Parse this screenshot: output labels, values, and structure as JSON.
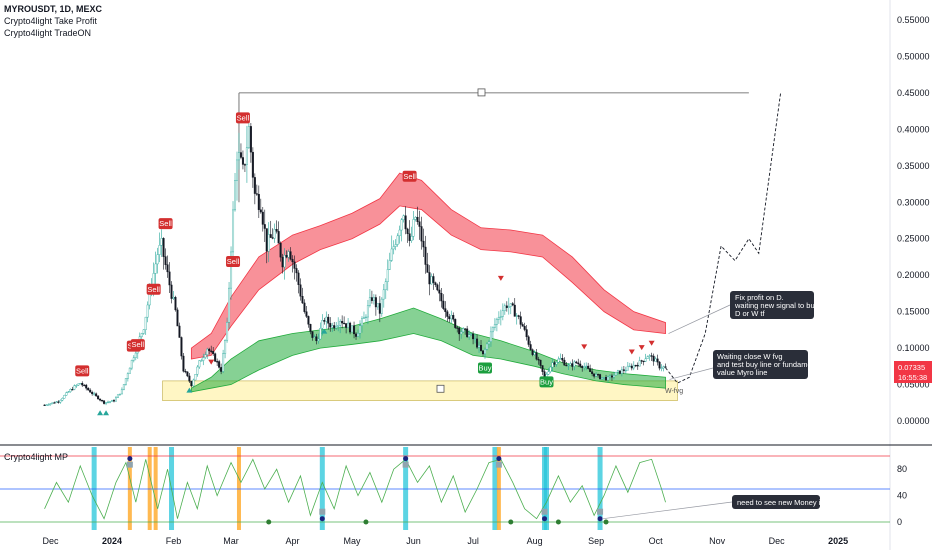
{
  "header": {
    "symbol": "MYROUSDT, 1D, MEXC",
    "indicator1": "Crypto4light Take Profit",
    "indicator2": "Crypto4light TradeON",
    "sub_indicator": "Crypto4light MP"
  },
  "price_badge": {
    "price": "0.07335",
    "timer": "16:55:38",
    "color": "#f23645"
  },
  "notes": [
    {
      "lines": [
        "Fix profit on D.",
        "waiting new signal to buy on",
        "D or W tf"
      ]
    },
    {
      "lines": [
        "Waiting close W fvg",
        "and test buy line or fundamental",
        "value Myro line"
      ]
    },
    {
      "lines": [
        "need to see new Money inflow"
      ]
    }
  ],
  "zone_label": "W-fvg",
  "colors": {
    "up": "#089981",
    "down": "#131722",
    "red_band": "#f23645",
    "green_band": "#22ab3c",
    "fvg": "#fff3b0",
    "osc": "#4caf50"
  },
  "chart_data": {
    "type": "candlestick",
    "title": "MYROUSDT, 1D, MEXC",
    "y_ticks": [
      "0.55000",
      "0.50000",
      "0.45000",
      "0.40000",
      "0.35000",
      "0.30000",
      "0.25000",
      "0.20000",
      "0.15000",
      "0.10000",
      "0.05000",
      "0.00000"
    ],
    "x_ticks": [
      "Dec",
      "2024",
      "Feb",
      "Mar",
      "Apr",
      "May",
      "Jun",
      "Jul",
      "Aug",
      "Sep",
      "Oct",
      "Nov",
      "Dec",
      "2025"
    ],
    "ylim": [
      0,
      0.57
    ],
    "price_path": [
      [
        "2023-11-28",
        0.022
      ],
      [
        "2023-12-05",
        0.027
      ],
      [
        "2023-12-12",
        0.045
      ],
      [
        "2023-12-16",
        0.052
      ],
      [
        "2023-12-22",
        0.038
      ],
      [
        "2023-12-28",
        0.025
      ],
      [
        "2024-01-02",
        0.028
      ],
      [
        "2024-01-06",
        0.042
      ],
      [
        "2024-01-10",
        0.075
      ],
      [
        "2024-01-14",
        0.105
      ],
      [
        "2024-01-17",
        0.13
      ],
      [
        "2024-01-20",
        0.175
      ],
      [
        "2024-01-24",
        0.23
      ],
      [
        "2024-01-26",
        0.24
      ],
      [
        "2024-01-29",
        0.2
      ],
      [
        "2024-02-02",
        0.15
      ],
      [
        "2024-02-06",
        0.07
      ],
      [
        "2024-02-10",
        0.05
      ],
      [
        "2024-02-14",
        0.08
      ],
      [
        "2024-02-18",
        0.1
      ],
      [
        "2024-02-22",
        0.085
      ],
      [
        "2024-02-25",
        0.07
      ],
      [
        "2024-02-28",
        0.13
      ],
      [
        "2024-03-01",
        0.24
      ],
      [
        "2024-03-04",
        0.37
      ],
      [
        "2024-03-07",
        0.34
      ],
      [
        "2024-03-10",
        0.4
      ],
      [
        "2024-03-13",
        0.31
      ],
      [
        "2024-03-16",
        0.3
      ],
      [
        "2024-03-19",
        0.24
      ],
      [
        "2024-03-23",
        0.26
      ],
      [
        "2024-03-27",
        0.22
      ],
      [
        "2024-03-30",
        0.24
      ],
      [
        "2024-04-03",
        0.2
      ],
      [
        "2024-04-07",
        0.15
      ],
      [
        "2024-04-10",
        0.12
      ],
      [
        "2024-04-13",
        0.11
      ],
      [
        "2024-04-17",
        0.14
      ],
      [
        "2024-04-21",
        0.13
      ],
      [
        "2024-04-25",
        0.14
      ],
      [
        "2024-04-29",
        0.13
      ],
      [
        "2024-05-03",
        0.12
      ],
      [
        "2024-05-07",
        0.14
      ],
      [
        "2024-05-11",
        0.17
      ],
      [
        "2024-05-15",
        0.15
      ],
      [
        "2024-05-18",
        0.19
      ],
      [
        "2024-05-21",
        0.23
      ],
      [
        "2024-05-24",
        0.26
      ],
      [
        "2024-05-27",
        0.29
      ],
      [
        "2024-05-30",
        0.24
      ],
      [
        "2024-06-02",
        0.28
      ],
      [
        "2024-06-05",
        0.25
      ],
      [
        "2024-06-08",
        0.2
      ],
      [
        "2024-06-12",
        0.18
      ],
      [
        "2024-06-16",
        0.16
      ],
      [
        "2024-06-20",
        0.14
      ],
      [
        "2024-06-24",
        0.125
      ],
      [
        "2024-06-28",
        0.12
      ],
      [
        "2024-07-02",
        0.11
      ],
      [
        "2024-07-06",
        0.09
      ],
      [
        "2024-07-10",
        0.12
      ],
      [
        "2024-07-14",
        0.145
      ],
      [
        "2024-07-18",
        0.16
      ],
      [
        "2024-07-22",
        0.15
      ],
      [
        "2024-07-26",
        0.13
      ],
      [
        "2024-07-30",
        0.1
      ],
      [
        "2024-08-03",
        0.08
      ],
      [
        "2024-08-06",
        0.06
      ],
      [
        "2024-08-10",
        0.08
      ],
      [
        "2024-08-14",
        0.085
      ],
      [
        "2024-08-18",
        0.075
      ],
      [
        "2024-08-22",
        0.08
      ],
      [
        "2024-08-26",
        0.075
      ],
      [
        "2024-08-30",
        0.065
      ],
      [
        "2024-09-03",
        0.06
      ],
      [
        "2024-09-07",
        0.058
      ],
      [
        "2024-09-11",
        0.065
      ],
      [
        "2024-09-15",
        0.07
      ],
      [
        "2024-09-19",
        0.075
      ],
      [
        "2024-09-23",
        0.08
      ],
      [
        "2024-09-27",
        0.09
      ],
      [
        "2024-09-30",
        0.085
      ],
      [
        "2024-10-03",
        0.075
      ],
      [
        "2024-10-06",
        0.073
      ]
    ],
    "projection": [
      [
        "2024-10-06",
        0.073
      ],
      [
        "2024-10-12",
        0.052
      ],
      [
        "2024-10-18",
        0.06
      ],
      [
        "2024-10-26",
        0.12
      ],
      [
        "2024-11-03",
        0.24
      ],
      [
        "2024-11-10",
        0.22
      ],
      [
        "2024-11-17",
        0.25
      ],
      [
        "2024-11-22",
        0.23
      ],
      [
        "2024-12-03",
        0.45
      ]
    ],
    "red_band": [
      [
        "2024-02-10",
        0.1,
        0.085
      ],
      [
        "2024-02-20",
        0.12,
        0.09
      ],
      [
        "2024-03-01",
        0.17,
        0.13
      ],
      [
        "2024-03-15",
        0.225,
        0.18
      ],
      [
        "2024-04-01",
        0.255,
        0.215
      ],
      [
        "2024-04-15",
        0.268,
        0.235
      ],
      [
        "2024-05-01",
        0.285,
        0.25
      ],
      [
        "2024-05-15",
        0.305,
        0.27
      ],
      [
        "2024-05-25",
        0.34,
        0.295
      ],
      [
        "2024-06-05",
        0.33,
        0.29
      ],
      [
        "2024-06-20",
        0.29,
        0.255
      ],
      [
        "2024-07-05",
        0.265,
        0.235
      ],
      [
        "2024-07-20",
        0.262,
        0.232
      ],
      [
        "2024-08-05",
        0.255,
        0.225
      ],
      [
        "2024-08-20",
        0.225,
        0.19
      ],
      [
        "2024-09-05",
        0.18,
        0.15
      ],
      [
        "2024-09-20",
        0.15,
        0.125
      ],
      [
        "2024-10-06",
        0.135,
        0.12
      ]
    ],
    "green_band": [
      [
        "2024-02-10",
        0.045,
        0.04
      ],
      [
        "2024-02-20",
        0.06,
        0.045
      ],
      [
        "2024-03-01",
        0.085,
        0.05
      ],
      [
        "2024-03-15",
        0.11,
        0.07
      ],
      [
        "2024-04-01",
        0.12,
        0.09
      ],
      [
        "2024-04-15",
        0.125,
        0.1
      ],
      [
        "2024-05-01",
        0.13,
        0.105
      ],
      [
        "2024-05-15",
        0.14,
        0.11
      ],
      [
        "2024-06-01",
        0.155,
        0.12
      ],
      [
        "2024-06-15",
        0.14,
        0.11
      ],
      [
        "2024-07-01",
        0.12,
        0.09
      ],
      [
        "2024-07-15",
        0.11,
        0.085
      ],
      [
        "2024-08-01",
        0.095,
        0.075
      ],
      [
        "2024-08-15",
        0.08,
        0.065
      ],
      [
        "2024-09-01",
        0.07,
        0.055
      ],
      [
        "2024-09-15",
        0.065,
        0.05
      ],
      [
        "2024-10-06",
        0.06,
        0.045
      ]
    ],
    "fvg_zone": {
      "from": "2024-01-29",
      "to": "2024-10-12",
      "low": 0.028,
      "high": 0.055
    },
    "resistance": {
      "from": "2024-03-05",
      "to": "2024-11-17",
      "y": 0.45
    },
    "signals": [
      {
        "label": "Sell",
        "date": "2023-12-17",
        "price": 0.068,
        "kind": "sell"
      },
      {
        "label": "Sell",
        "date": "2024-01-12",
        "price": 0.102,
        "kind": "sell"
      },
      {
        "label": "Sell",
        "date": "2024-01-14",
        "price": 0.104,
        "kind": "sell"
      },
      {
        "label": "Sell",
        "date": "2024-01-22",
        "price": 0.18,
        "kind": "sell"
      },
      {
        "label": "Sell",
        "date": "2024-01-28",
        "price": 0.27,
        "kind": "sell"
      },
      {
        "label": "Sell",
        "date": "2024-03-02",
        "price": 0.218,
        "kind": "sell"
      },
      {
        "label": "Sell",
        "date": "2024-03-07",
        "price": 0.415,
        "kind": "sell"
      },
      {
        "label": "Sell",
        "date": "2024-05-30",
        "price": 0.335,
        "kind": "sell"
      },
      {
        "label": "Buy",
        "date": "2024-07-07",
        "price": 0.072,
        "kind": "buy"
      },
      {
        "label": "Buy",
        "date": "2024-08-07",
        "price": 0.053,
        "kind": "buy"
      }
    ],
    "oscillator": {
      "ylim": [
        -6,
        113
      ],
      "y_ticks": [
        "80",
        "40",
        "0"
      ],
      "levels": [
        {
          "y": 100,
          "color": "#f23645"
        },
        {
          "y": 50,
          "color": "#2962ff"
        },
        {
          "y": 0,
          "color": "#4caf50"
        }
      ],
      "series": [
        [
          "2023-11-28",
          20
        ],
        [
          "2023-12-04",
          60
        ],
        [
          "2023-12-10",
          30
        ],
        [
          "2023-12-16",
          85
        ],
        [
          "2023-12-22",
          40
        ],
        [
          "2023-12-28",
          5
        ],
        [
          "2024-01-03",
          60
        ],
        [
          "2024-01-08",
          90
        ],
        [
          "2024-01-13",
          30
        ],
        [
          "2024-01-18",
          95
        ],
        [
          "2024-01-24",
          20
        ],
        [
          "2024-01-29",
          80
        ],
        [
          "2024-02-03",
          5
        ],
        [
          "2024-02-08",
          60
        ],
        [
          "2024-02-13",
          20
        ],
        [
          "2024-02-18",
          85
        ],
        [
          "2024-02-23",
          40
        ],
        [
          "2024-03-01",
          90
        ],
        [
          "2024-03-06",
          60
        ],
        [
          "2024-03-12",
          95
        ],
        [
          "2024-03-18",
          50
        ],
        [
          "2024-03-24",
          80
        ],
        [
          "2024-03-30",
          30
        ],
        [
          "2024-04-05",
          70
        ],
        [
          "2024-04-10",
          10
        ],
        [
          "2024-04-16",
          60
        ],
        [
          "2024-04-22",
          20
        ],
        [
          "2024-04-28",
          85
        ],
        [
          "2024-05-04",
          40
        ],
        [
          "2024-05-10",
          75
        ],
        [
          "2024-05-16",
          30
        ],
        [
          "2024-05-22",
          80
        ],
        [
          "2024-05-28",
          95
        ],
        [
          "2024-06-03",
          60
        ],
        [
          "2024-06-09",
          85
        ],
        [
          "2024-06-15",
          30
        ],
        [
          "2024-06-21",
          70
        ],
        [
          "2024-06-27",
          15
        ],
        [
          "2024-07-03",
          50
        ],
        [
          "2024-07-09",
          90
        ],
        [
          "2024-07-15",
          95
        ],
        [
          "2024-07-21",
          60
        ],
        [
          "2024-07-27",
          20
        ],
        [
          "2024-08-02",
          5
        ],
        [
          "2024-08-07",
          30
        ],
        [
          "2024-08-13",
          70
        ],
        [
          "2024-08-19",
          30
        ],
        [
          "2024-08-25",
          55
        ],
        [
          "2024-08-31",
          10
        ],
        [
          "2024-09-05",
          40
        ],
        [
          "2024-09-11",
          85
        ],
        [
          "2024-09-17",
          45
        ],
        [
          "2024-09-23",
          90
        ],
        [
          "2024-09-29",
          95
        ],
        [
          "2024-10-04",
          50
        ],
        [
          "2024-10-06",
          30
        ]
      ],
      "cyan_bars": [
        "2023-12-23",
        "2024-01-31",
        "2024-04-16",
        "2024-05-28",
        "2024-07-12",
        "2024-08-06",
        "2024-08-07",
        "2024-09-03"
      ],
      "orange_bars": [
        "2024-01-10",
        "2024-01-20",
        "2024-01-23",
        "2024-03-05",
        "2024-07-14"
      ],
      "green_dots": [
        "2024-03-20",
        "2024-05-08",
        "2024-07-20",
        "2024-08-13",
        "2024-09-06"
      ]
    }
  }
}
